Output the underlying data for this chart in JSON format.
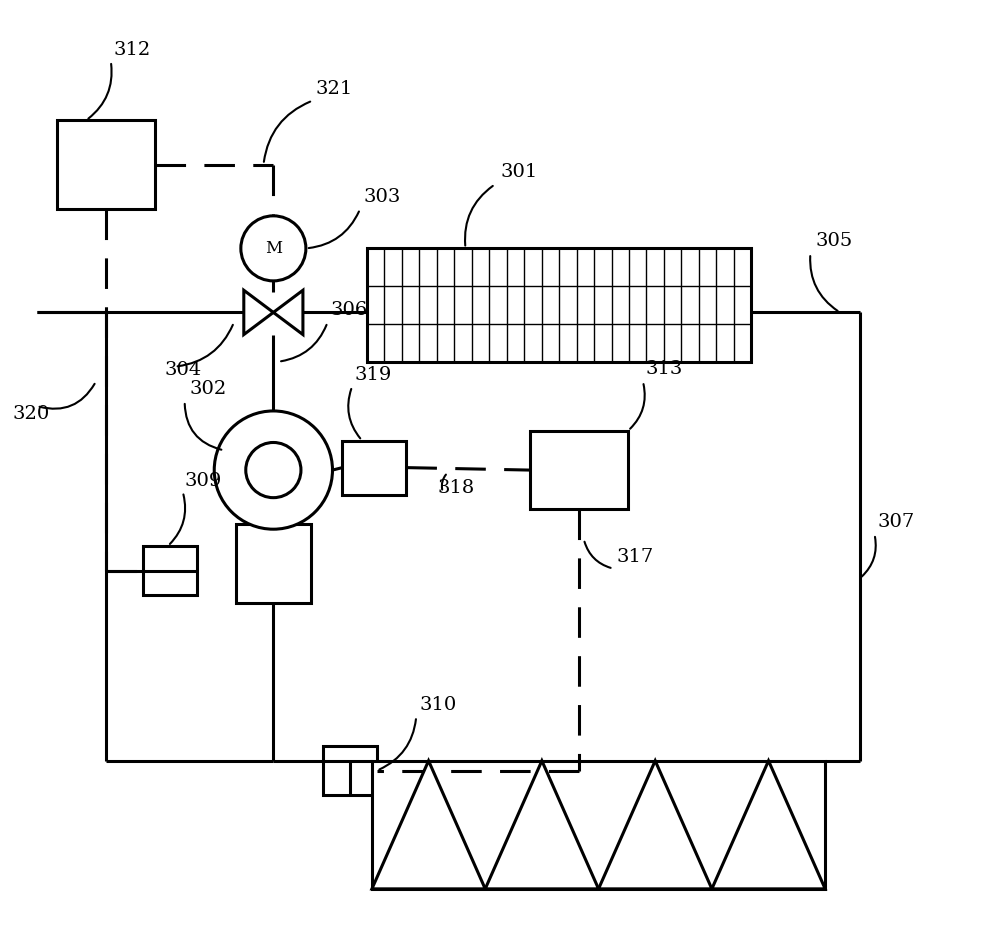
{
  "bg_color": "#ffffff",
  "line_color": "#000000",
  "lw": 2.2,
  "dlw": 2.2
}
